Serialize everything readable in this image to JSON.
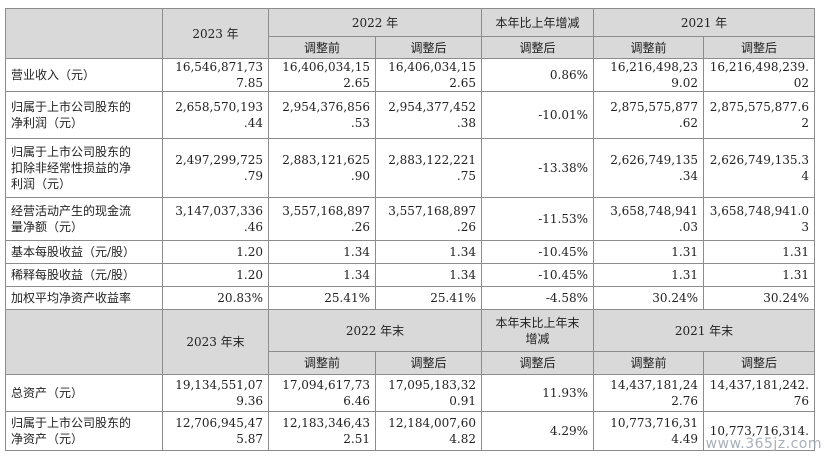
{
  "header1": {
    "blank": "",
    "col_2023": "2023 年",
    "col_2022": "2022 年",
    "col_change": "本年比上年增减",
    "col_2021": "2021 年",
    "sub_before": "调整前",
    "sub_after": "调整后"
  },
  "rows1": [
    {
      "label": "营业收入（元）",
      "v2023": "16,546,871,73\n7.85",
      "v2022b": "16,406,034,15\n2.65",
      "v2022a": "16,406,034,15\n2.65",
      "chg": "0.86%",
      "v2021b": "16,216,498,23\n9.02",
      "v2021a": "16,216,498,239.\n02"
    },
    {
      "label": "归属于上市公司股东的\n净利润（元）",
      "v2023": "2,658,570,193\n.44",
      "v2022b": "2,954,376,856\n.53",
      "v2022a": "2,954,377,452\n.38",
      "chg": "-10.01%",
      "v2021b": "2,875,575,877\n.62",
      "v2021a": "2,875,575,877.6\n2"
    },
    {
      "label": "归属于上市公司股东的\n扣除非经常性损益的净\n利润（元）",
      "v2023": "2,497,299,725\n.79",
      "v2022b": "2,883,121,625\n.90",
      "v2022a": "2,883,122,221\n.75",
      "chg": "-13.38%",
      "v2021b": "2,626,749,135\n.34",
      "v2021a": "2,626,749,135.3\n4"
    },
    {
      "label": "经营活动产生的现金流\n量净额（元）",
      "v2023": "3,147,037,336\n.46",
      "v2022b": "3,557,168,897\n.26",
      "v2022a": "3,557,168,897\n.26",
      "chg": "-11.53%",
      "v2021b": "3,658,748,941\n.03",
      "v2021a": "3,658,748,941.0\n3"
    },
    {
      "label": "基本每股收益（元/股）",
      "v2023": "1.20",
      "v2022b": "1.34",
      "v2022a": "1.34",
      "chg": "-10.45%",
      "v2021b": "1.31",
      "v2021a": "1.31"
    },
    {
      "label": "稀释每股收益（元/股）",
      "v2023": "1.20",
      "v2022b": "1.34",
      "v2022a": "1.34",
      "chg": "-10.45%",
      "v2021b": "1.31",
      "v2021a": "1.31"
    },
    {
      "label": "加权平均净资产收益率",
      "v2023": "20.83%",
      "v2022b": "25.41%",
      "v2022a": "25.41%",
      "chg": "-4.58%",
      "v2021b": "30.24%",
      "v2021a": "30.24%"
    }
  ],
  "header2": {
    "blank": "",
    "col_2023": "2023 年末",
    "col_2022": "2022 年末",
    "col_change": "本年末比上年末\n增减",
    "col_2021": "2021 年末",
    "sub_before": "调整前",
    "sub_after": "调整后"
  },
  "rows2": [
    {
      "label": "总资产（元）",
      "v2023": "19,134,551,07\n9.36",
      "v2022b": "17,094,617,73\n6.46",
      "v2022a": "17,095,183,32\n0.91",
      "chg": "11.93%",
      "v2021b": "14,437,181,24\n2.76",
      "v2021a": "14,437,181,242.\n76"
    },
    {
      "label": "归属于上市公司股东的\n净资产（元）",
      "v2023": "12,706,945,47\n5.87",
      "v2022b": "12,183,346,43\n2.51",
      "v2022a": "12,184,007,60\n4.82",
      "chg": "4.29%",
      "v2021b": "10,773,716,31\n4.49",
      "v2021a": "10,773,716,314."
    }
  ],
  "watermark": "www.365jz.com"
}
